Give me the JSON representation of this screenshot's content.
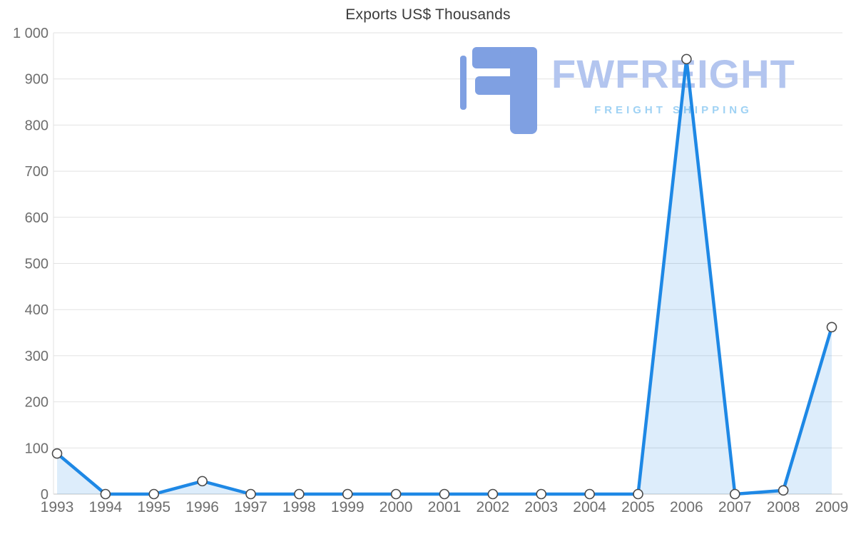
{
  "title": "Exports US$ Thousands",
  "watermark": {
    "name": "FWFREIGHT",
    "tagline": "FREIGHT SHIPPING",
    "icon_color": "#7fa0e2",
    "name_color": "#b3c5ef",
    "tagline_color": "#9fd2f4"
  },
  "chart_data": {
    "type": "area",
    "title": "Exports US$ Thousands",
    "categories": [
      "1993",
      "1994",
      "1995",
      "1996",
      "1997",
      "1998",
      "1999",
      "2000",
      "2001",
      "2002",
      "2003",
      "2004",
      "2005",
      "2006",
      "2007",
      "2008",
      "2009"
    ],
    "values": [
      88,
      0,
      0,
      28,
      0,
      0,
      0,
      0,
      0,
      0,
      0,
      0,
      0,
      943,
      0,
      8,
      362
    ],
    "xlabel": "",
    "ylabel": "",
    "ylim": [
      0,
      1000
    ],
    "ytick_interval": 100,
    "ytick_labels": [
      "0",
      "100",
      "200",
      "300",
      "400",
      "500",
      "600",
      "700",
      "800",
      "900",
      "1 000"
    ],
    "grid": true,
    "legend": "none",
    "line_color": "#1e88e5",
    "fill_color": "rgba(30,136,229,0.15)",
    "marker_fill": "#ffffff",
    "marker_stroke": "#4a4a4a",
    "grid_color": "#e2e2e2",
    "axis_line_color": "#c6c6c6",
    "tick_label_color": "#6e6e6e"
  }
}
